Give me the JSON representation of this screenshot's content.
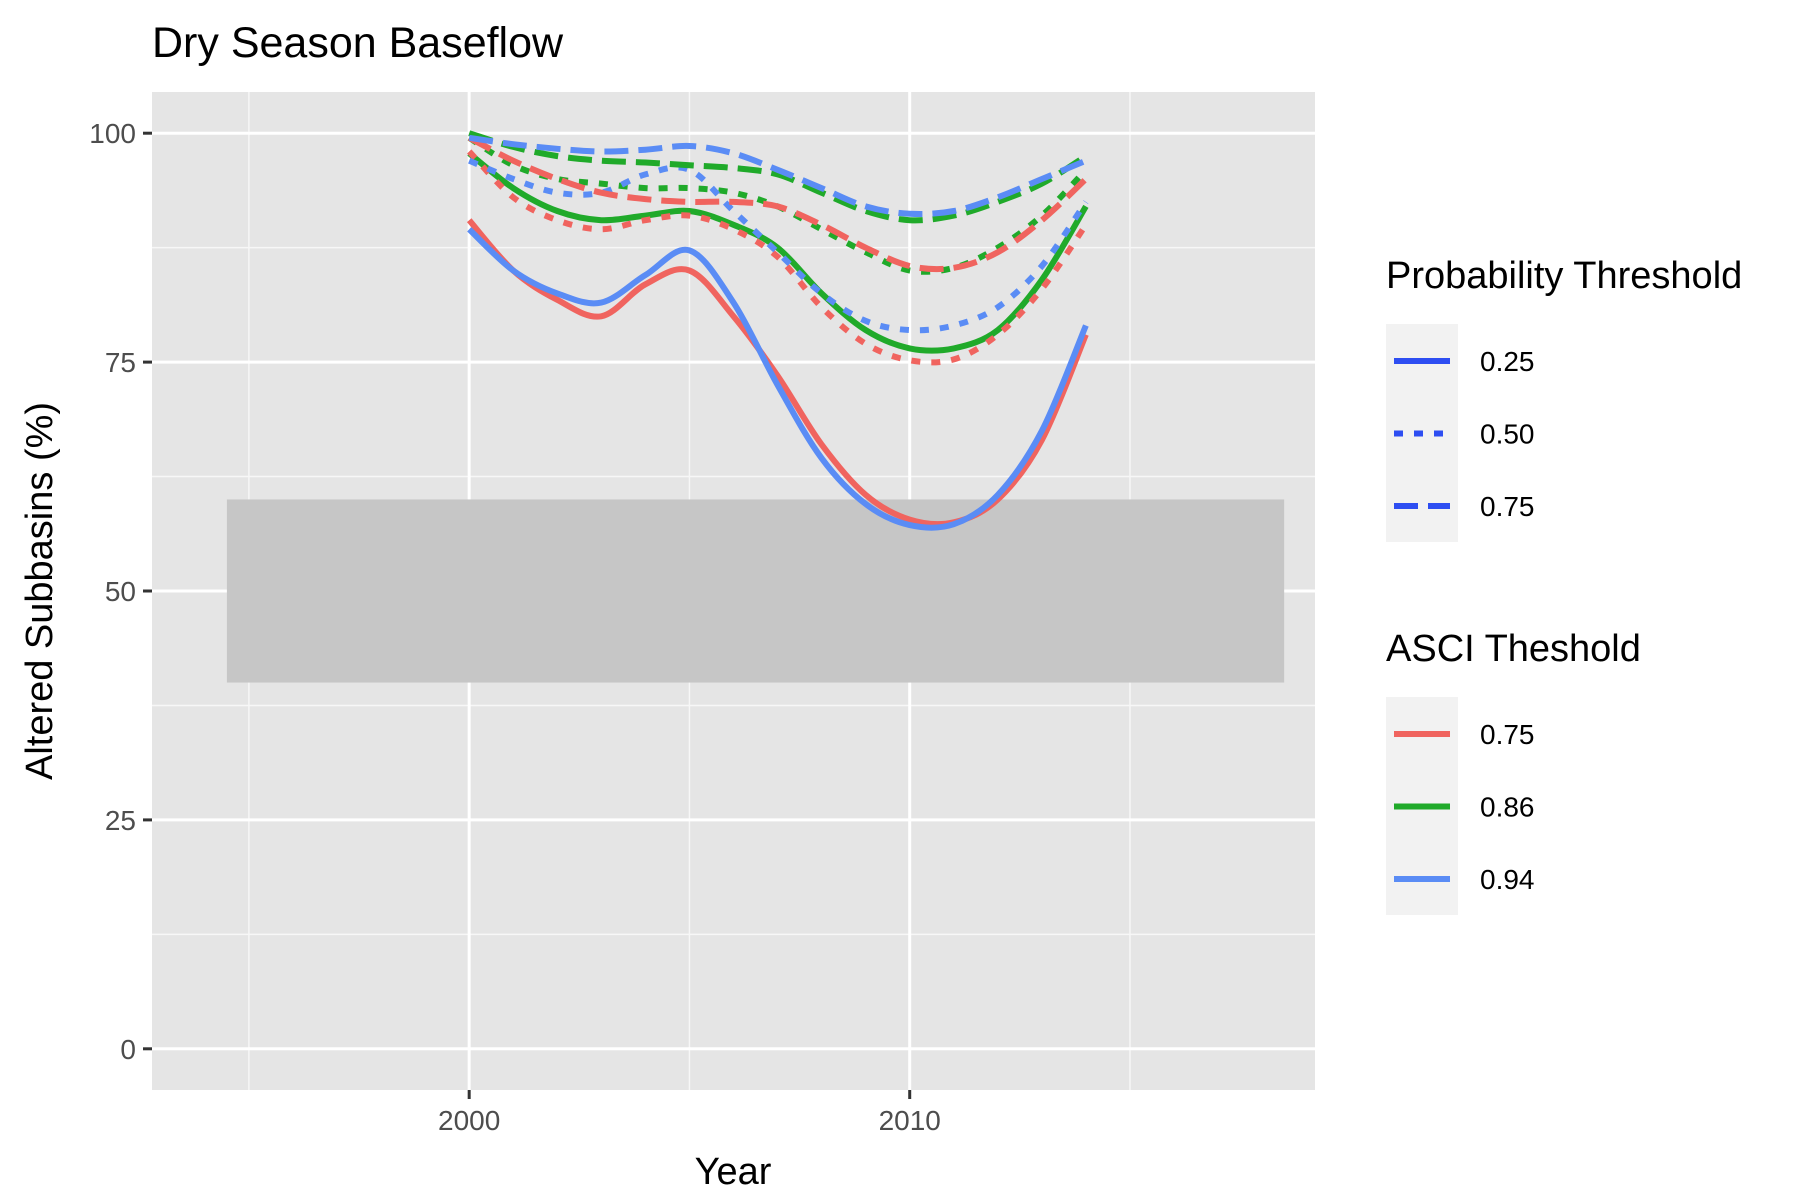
{
  "chart_data": {
    "type": "line",
    "title": "Dry Season Baseflow",
    "xlabel": "Year",
    "ylabel": "Altered Subbasins (%)",
    "xlim": [
      1992.8,
      2019.2
    ],
    "ylim": [
      -4.5,
      104.5
    ],
    "x_ticks": [
      2000,
      2010
    ],
    "y_ticks": [
      0,
      25,
      50,
      75,
      100
    ],
    "x_minor_grid": [
      1995,
      2005,
      2015
    ],
    "y_minor_grid": [
      12.5,
      37.5,
      62.5,
      87.5
    ],
    "grid": true,
    "background": "#e5e5e5",
    "band": {
      "x": [
        1994.5,
        2018.5
      ],
      "y": [
        40,
        60
      ],
      "color": "#c6c6c6"
    },
    "legend_placement": "right",
    "legends": [
      {
        "title": "Probability Threshold",
        "key": "linetype",
        "entries": [
          {
            "label": "0.25",
            "linetype": "solid"
          },
          {
            "label": "0.50",
            "linetype": "dotted"
          },
          {
            "label": "0.75",
            "linetype": "dashed"
          }
        ]
      },
      {
        "title": "ASCI Theshold",
        "key": "color",
        "entries": [
          {
            "label": "0.75",
            "color": "#f0645f"
          },
          {
            "label": "0.86",
            "color": "#20aa2a"
          },
          {
            "label": "0.94",
            "color": "#5a8cf5"
          }
        ]
      }
    ],
    "legend_line_color": "#2e4ef2",
    "x": [
      2000,
      2001,
      2002,
      2003,
      2004,
      2005,
      2006,
      2007,
      2008,
      2009,
      2010,
      2011,
      2012,
      2013,
      2014
    ],
    "series": [
      {
        "asci": "0.75",
        "prob": "0.25",
        "color": "#f0645f",
        "dash": "solid",
        "values": [
          90.5,
          85,
          81.8,
          80,
          83.5,
          85,
          80,
          73.5,
          66,
          60.5,
          57.8,
          57.5,
          60,
          66.5,
          78
        ]
      },
      {
        "asci": "0.86",
        "prob": "0.25",
        "color": "#20aa2a",
        "dash": "solid",
        "values": [
          97.8,
          94,
          91.5,
          90.5,
          91,
          91.5,
          90,
          87.5,
          82.5,
          78.5,
          76.5,
          76.5,
          78.5,
          84,
          92
        ]
      },
      {
        "asci": "0.94",
        "prob": "0.25",
        "color": "#5a8cf5",
        "dash": "solid",
        "values": [
          89.5,
          85,
          82.5,
          81.5,
          84.5,
          87.2,
          81.5,
          72.5,
          64.5,
          59.5,
          57.2,
          57.3,
          60.5,
          67.5,
          79
        ]
      },
      {
        "asci": "0.75",
        "prob": "0.50",
        "color": "#f0645f",
        "dash": "dotted",
        "values": [
          98,
          93,
          90.5,
          89.5,
          90.5,
          91,
          89.5,
          86.5,
          81,
          77,
          75.2,
          75.3,
          78,
          83,
          90
        ]
      },
      {
        "asci": "0.86",
        "prob": "0.50",
        "color": "#20aa2a",
        "dash": "dotted",
        "values": [
          99.5,
          96.5,
          95,
          94.5,
          94,
          94,
          93.5,
          92,
          89.5,
          87,
          85,
          85.3,
          87.5,
          91,
          96
        ]
      },
      {
        "asci": "0.94",
        "prob": "0.50",
        "color": "#5a8cf5",
        "dash": "dotted",
        "values": [
          97,
          95,
          93.5,
          93.5,
          95.5,
          96,
          91.5,
          87,
          82.5,
          79.5,
          78.5,
          79,
          81,
          85.5,
          92.5
        ]
      },
      {
        "asci": "0.75",
        "prob": "0.75",
        "color": "#f0645f",
        "dash": "dashed",
        "values": [
          99.5,
          97,
          95,
          93.5,
          92.8,
          92.5,
          92.5,
          92,
          90,
          87.5,
          85.5,
          85.3,
          87,
          90.5,
          95
        ]
      },
      {
        "asci": "0.86",
        "prob": "0.75",
        "color": "#20aa2a",
        "dash": "dashed",
        "values": [
          100,
          98.5,
          97.5,
          97,
          96.8,
          96.5,
          96.2,
          95.5,
          93.5,
          91.5,
          90.5,
          91,
          92.5,
          94.5,
          97.5
        ]
      },
      {
        "asci": "0.94",
        "prob": "0.75",
        "color": "#5a8cf5",
        "dash": "dashed",
        "values": [
          99.5,
          98.8,
          98.3,
          98,
          98.2,
          98.6,
          97.8,
          96,
          94,
          92,
          91.2,
          91.5,
          93,
          95,
          97
        ]
      }
    ]
  }
}
